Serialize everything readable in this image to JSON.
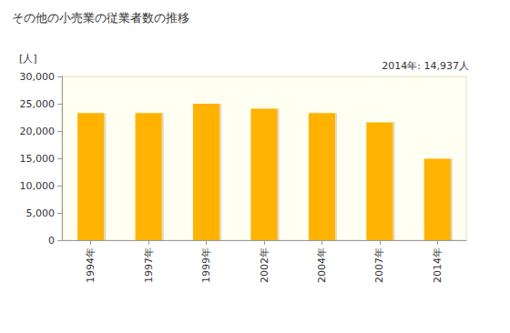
{
  "chart_data": {
    "type": "bar",
    "title": "その他の小売業の従業者数の推移",
    "ylabel": "[人]",
    "annotation": "2014年: 14,937人",
    "categories": [
      "1994年",
      "1997年",
      "1999年",
      "2002年",
      "2004年",
      "2007年",
      "2014年"
    ],
    "values": [
      23300,
      23300,
      25000,
      24100,
      23300,
      21600,
      14937
    ],
    "color": "#ffb300",
    "ylim": [
      0,
      30000
    ],
    "yticks": [
      0,
      {
        "value": 5000,
        "label": "5,000"
      },
      {
        "value": 10000,
        "label": "10,000"
      },
      {
        "value": 15000,
        "label": "15,000"
      },
      {
        "value": 20000,
        "label": "20,000"
      },
      {
        "value": 25000,
        "label": "25,000"
      },
      {
        "value": 30000,
        "label": "30,000"
      }
    ],
    "grid": false
  }
}
